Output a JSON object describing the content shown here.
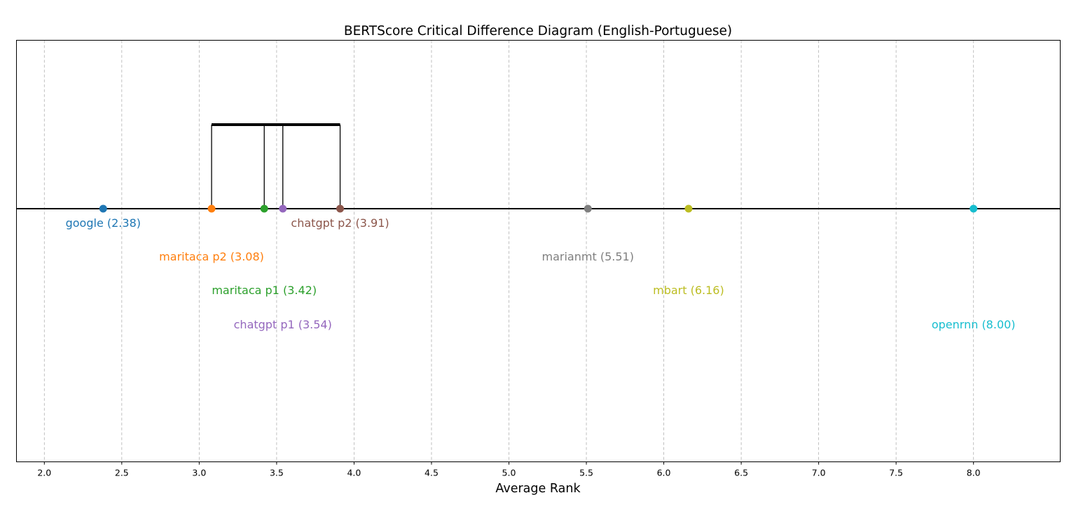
{
  "chart_data": {
    "type": "scatter",
    "title": "BERTScore Critical Difference Diagram (English-Portuguese)",
    "xlabel": "Average Rank",
    "ylabel": "",
    "xlim": [
      1.82,
      8.56
    ],
    "xticks": [
      2.0,
      2.5,
      3.0,
      3.5,
      4.0,
      4.5,
      5.0,
      5.5,
      6.0,
      6.5,
      7.0,
      7.5,
      8.0
    ],
    "xtick_labels": [
      "2.0",
      "2.5",
      "3.0",
      "3.5",
      "4.0",
      "4.5",
      "5.0",
      "5.5",
      "6.0",
      "6.5",
      "7.0",
      "7.5",
      "8.0"
    ],
    "grid": "vertical dashed",
    "points": [
      {
        "name": "google",
        "rank": 2.38,
        "label": "google (2.38)",
        "color": "#1f77b4",
        "label_row": 0
      },
      {
        "name": "maritaca p2",
        "rank": 3.08,
        "label": "maritaca p2 (3.08)",
        "color": "#ff7f0e",
        "label_row": 1
      },
      {
        "name": "maritaca p1",
        "rank": 3.42,
        "label": "maritaca p1 (3.42)",
        "color": "#2ca02c",
        "label_row": 2
      },
      {
        "name": "chatgpt p1",
        "rank": 3.54,
        "label": "chatgpt p1 (3.54)",
        "color": "#9467bd",
        "label_row": 3
      },
      {
        "name": "chatgpt p2",
        "rank": 3.91,
        "label": "chatgpt p2 (3.91)",
        "color": "#8c564b",
        "label_row": 0
      },
      {
        "name": "marianmt",
        "rank": 5.51,
        "label": "marianmt (5.51)",
        "color": "#7f7f7f",
        "label_row": 1
      },
      {
        "name": "mbart",
        "rank": 6.16,
        "label": "mbart (6.16)",
        "color": "#bcbd22",
        "label_row": 2
      },
      {
        "name": "openrnn",
        "rank": 8.0,
        "label": "openrnn (8.00)",
        "color": "#17becf",
        "label_row": 3
      }
    ],
    "cd_group": {
      "from": 3.08,
      "to": 3.91,
      "members": [
        3.08,
        3.42,
        3.54,
        3.91
      ]
    }
  }
}
